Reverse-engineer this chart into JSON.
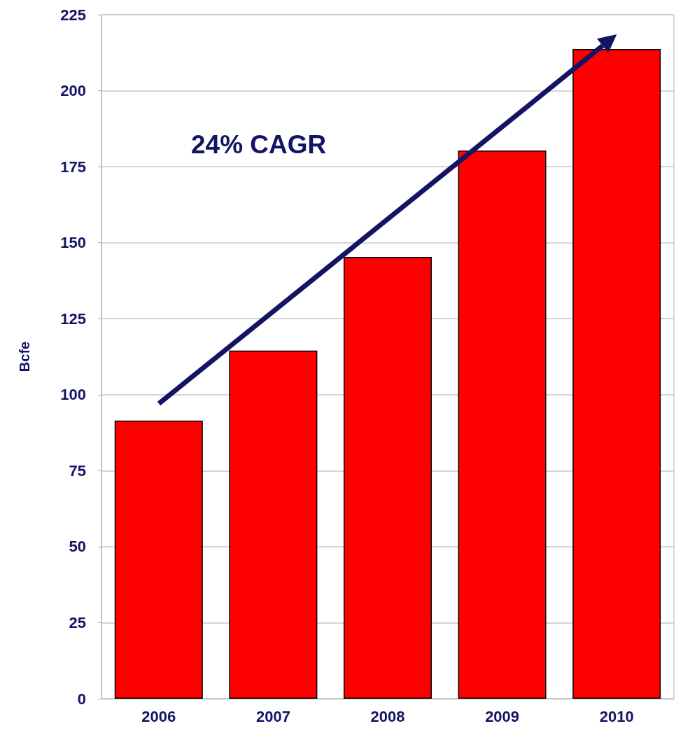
{
  "chart_data": {
    "type": "bar",
    "ylabel": "Bcfe",
    "categories": [
      "2006",
      "2007",
      "2008",
      "2009",
      "2010"
    ],
    "values": [
      91.5,
      114.5,
      145.3,
      180.3,
      213.7
    ],
    "color": "#ff0000",
    "ylim": [
      0,
      225
    ],
    "yticks": [
      0,
      25,
      50,
      75,
      100,
      125,
      150,
      175,
      200,
      225
    ],
    "grid": "y",
    "annotations": [
      "24% CAGR"
    ]
  }
}
